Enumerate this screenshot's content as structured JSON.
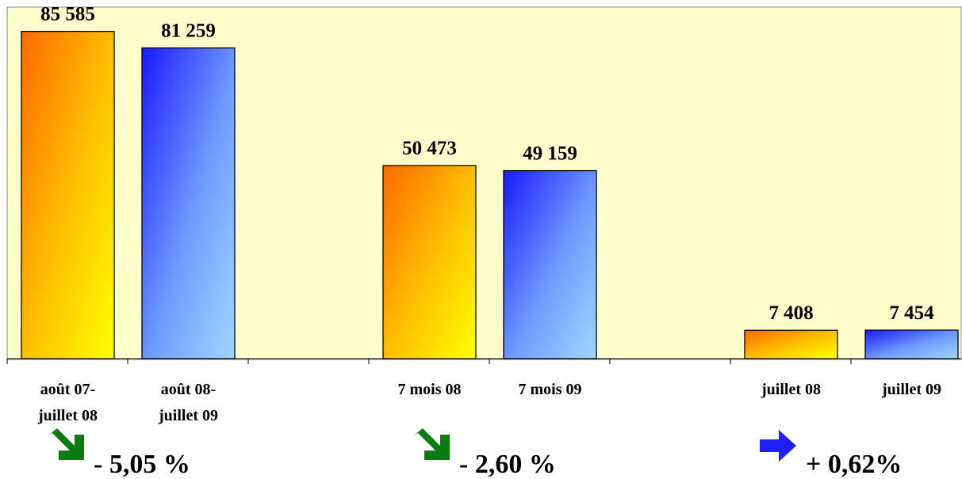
{
  "chart_data": {
    "type": "bar",
    "groups": [
      {
        "labels": [
          "août 07-\njuillet 08",
          "août 08-\njuillet 09"
        ],
        "values": [
          85585,
          81259
        ],
        "value_labels": [
          "85 585",
          "81 259"
        ],
        "change": "- 5,05 %",
        "trend": "down"
      },
      {
        "labels": [
          "7 mois 08",
          "7 mois 09"
        ],
        "values": [
          50473,
          49159
        ],
        "value_labels": [
          "50 473",
          "49 159"
        ],
        "change": "- 2,60 %",
        "trend": "down"
      },
      {
        "labels": [
          "juillet 08",
          "juillet 09"
        ],
        "values": [
          7408,
          7454
        ],
        "value_labels": [
          "7 408",
          "7 454"
        ],
        "change": "+ 0,62%",
        "trend": "flat"
      }
    ],
    "series_colors": [
      "#ff8a00",
      "#3340ff"
    ],
    "ylim": [
      0,
      100000
    ],
    "grid": false,
    "legend": "none"
  },
  "colors": {
    "plot_background": "#ffffcc",
    "down_arrow": "#0a7d12",
    "flat_arrow": "#1f1fff"
  },
  "icons": {
    "down": "arrow-down-right-icon",
    "flat": "arrow-right-icon"
  }
}
